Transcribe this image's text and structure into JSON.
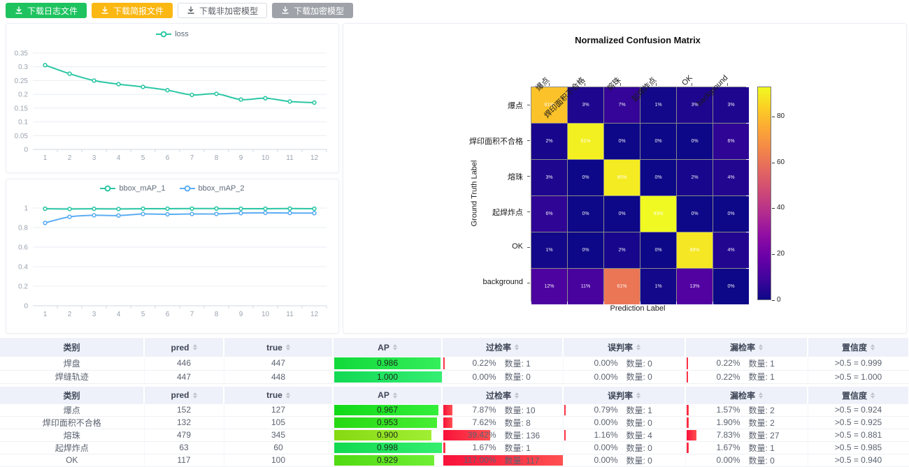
{
  "toolbar": {
    "buttons": [
      {
        "id": "download-log-button",
        "label": "下载日志文件",
        "style": "green"
      },
      {
        "id": "download-brief-button",
        "label": "下载简报文件",
        "style": "yellow"
      },
      {
        "id": "download-plain-model-button",
        "label": "下载非加密模型",
        "style": "white"
      },
      {
        "id": "download-encrypted-model-button",
        "label": "下载加密模型",
        "style": "gray"
      }
    ]
  },
  "chart_data": [
    {
      "id": "loss-chart",
      "type": "line",
      "x": [
        1,
        2,
        3,
        4,
        5,
        6,
        7,
        8,
        9,
        10,
        11,
        12
      ],
      "series": [
        {
          "name": "loss",
          "color": "#2bc7a4",
          "values": [
            0.306,
            0.275,
            0.25,
            0.237,
            0.227,
            0.215,
            0.198,
            0.202,
            0.181,
            0.186,
            0.174,
            0.17
          ]
        }
      ],
      "ylim": [
        0,
        0.35
      ],
      "ytick_step": 0.05,
      "grid": true,
      "legend_position": "top"
    },
    {
      "id": "bbox-map-chart",
      "type": "line",
      "x": [
        1,
        2,
        3,
        4,
        5,
        6,
        7,
        8,
        9,
        10,
        11,
        12
      ],
      "series": [
        {
          "name": "bbox_mAP_1",
          "color": "#2bc7a4",
          "values": [
            0.993,
            0.99,
            0.992,
            0.99,
            0.993,
            0.993,
            0.994,
            0.995,
            0.993,
            0.993,
            0.994,
            0.993
          ]
        },
        {
          "name": "bbox_mAP_2",
          "color": "#5cadf3",
          "values": [
            0.848,
            0.91,
            0.926,
            0.923,
            0.939,
            0.936,
            0.939,
            0.939,
            0.948,
            0.951,
            0.949,
            0.948
          ]
        }
      ],
      "ylim": [
        0,
        1
      ],
      "ytick_step": 0.2,
      "grid": true,
      "legend_position": "top"
    },
    {
      "id": "confusion-matrix",
      "type": "heatmap",
      "title": "Normalized Confusion Matrix",
      "xlabel": "Prediction Label",
      "ylabel": "Ground Truth Label",
      "categories": [
        "爆点",
        "焊印面积不合格",
        "熔珠",
        "起焊炸点",
        "OK",
        "background"
      ],
      "rows": [
        [
          81,
          3,
          7,
          1,
          3,
          3
        ],
        [
          2,
          91,
          0,
          0,
          0,
          6
        ],
        [
          3,
          0,
          90,
          0,
          2,
          4
        ],
        [
          6,
          0,
          0,
          93,
          0,
          0
        ],
        [
          1,
          0,
          2,
          0,
          89,
          4
        ],
        [
          12,
          11,
          61,
          1,
          13,
          0
        ]
      ],
      "unit": "%",
      "vmin": 0,
      "vmax": 93,
      "colormap": "plasma",
      "colorbar_ticks": [
        0,
        20,
        40,
        60,
        80
      ]
    }
  ],
  "tables": [
    {
      "id": "summary-table",
      "headers": [
        {
          "label": "类别",
          "sortable": false
        },
        {
          "label": "pred",
          "sortable": true
        },
        {
          "label": "true",
          "sortable": true
        },
        {
          "label": "AP",
          "sortable": true
        },
        {
          "label": "过检率",
          "sortable": true
        },
        {
          "label": "误判率",
          "sortable": true
        },
        {
          "label": "漏检率",
          "sortable": true
        },
        {
          "label": "置信度",
          "sortable": true
        }
      ],
      "rows": [
        {
          "category": "焊盘",
          "pred": "446",
          "true": "447",
          "ap": {
            "display": "0.986",
            "value": 0.986
          },
          "over": {
            "pct": "0.22%",
            "fraction": 0.0022,
            "count": "数量: 1"
          },
          "mis": {
            "pct": "0.00%",
            "fraction": 0,
            "count": "数量: 0"
          },
          "miss": {
            "pct": "0.22%",
            "fraction": 0.0022,
            "count": "数量: 1"
          },
          "confidence": ">0.5 = 0.999"
        },
        {
          "category": "焊缝轨迹",
          "pred": "447",
          "true": "448",
          "ap": {
            "display": "1.000",
            "value": 1.0
          },
          "over": {
            "pct": "0.00%",
            "fraction": 0,
            "count": "数量: 0"
          },
          "mis": {
            "pct": "0.00%",
            "fraction": 0,
            "count": "数量: 0"
          },
          "miss": {
            "pct": "0.22%",
            "fraction": 0.0022,
            "count": "数量: 1"
          },
          "confidence": ">0.5 = 1.000"
        }
      ]
    },
    {
      "id": "defect-table",
      "headers": [
        {
          "label": "类别",
          "sortable": false
        },
        {
          "label": "pred",
          "sortable": true
        },
        {
          "label": "true",
          "sortable": true
        },
        {
          "label": "AP",
          "sortable": true
        },
        {
          "label": "过检率",
          "sortable": true
        },
        {
          "label": "误判率",
          "sortable": true
        },
        {
          "label": "漏检率",
          "sortable": true
        },
        {
          "label": "置信度",
          "sortable": true
        }
      ],
      "rows": [
        {
          "category": "爆点",
          "pred": "152",
          "true": "127",
          "ap": {
            "display": "0.967",
            "value": 0.967
          },
          "over": {
            "pct": "7.87%",
            "fraction": 0.0787,
            "count": "数量: 10"
          },
          "mis": {
            "pct": "0.79%",
            "fraction": 0.0079,
            "count": "数量: 1"
          },
          "miss": {
            "pct": "1.57%",
            "fraction": 0.0157,
            "count": "数量: 2"
          },
          "confidence": ">0.5 = 0.924"
        },
        {
          "category": "焊印面积不合格",
          "pred": "132",
          "true": "105",
          "ap": {
            "display": "0.953",
            "value": 0.953
          },
          "over": {
            "pct": "7.62%",
            "fraction": 0.0762,
            "count": "数量: 8"
          },
          "mis": {
            "pct": "0.00%",
            "fraction": 0,
            "count": "数量: 0"
          },
          "miss": {
            "pct": "1.90%",
            "fraction": 0.019,
            "count": "数量: 2"
          },
          "confidence": ">0.5 = 0.925"
        },
        {
          "category": "熔珠",
          "pred": "479",
          "true": "345",
          "ap": {
            "display": "0.900",
            "value": 0.9
          },
          "over": {
            "pct": "39.42%",
            "fraction": 0.3942,
            "count": "数量: 136"
          },
          "mis": {
            "pct": "1.16%",
            "fraction": 0.0116,
            "count": "数量: 4"
          },
          "miss": {
            "pct": "7.83%",
            "fraction": 0.0783,
            "count": "数量: 27"
          },
          "confidence": ">0.5 = 0.881"
        },
        {
          "category": "起焊炸点",
          "pred": "63",
          "true": "60",
          "ap": {
            "display": "0.998",
            "value": 0.998
          },
          "over": {
            "pct": "1.67%",
            "fraction": 0.0167,
            "count": "数量: 1"
          },
          "mis": {
            "pct": "0.00%",
            "fraction": 0,
            "count": "数量: 0"
          },
          "miss": {
            "pct": "1.67%",
            "fraction": 0.0167,
            "count": "数量: 1"
          },
          "confidence": ">0.5 = 0.985"
        },
        {
          "category": "OK",
          "pred": "117",
          "true": "100",
          "ap": {
            "display": "0.929",
            "value": 0.929
          },
          "over": {
            "pct": "117.00%",
            "fraction": 1.17,
            "count": "数量: 117"
          },
          "mis": {
            "pct": "0.00%",
            "fraction": 0,
            "count": "数量: 0"
          },
          "miss": {
            "pct": "0.00%",
            "fraction": 0,
            "count": "数量: 0"
          },
          "confidence": ">0.5 = 0.940"
        }
      ]
    }
  ],
  "colors": {
    "teal_series": "#2bc7a4",
    "blue_series": "#5cadf3",
    "ap_bar_base": "#00e04a",
    "rate_bar": "#f8123a",
    "grid_line": "#e8edf3",
    "axis_text": "#9aa3af",
    "header_bg": "#eef1f9"
  }
}
